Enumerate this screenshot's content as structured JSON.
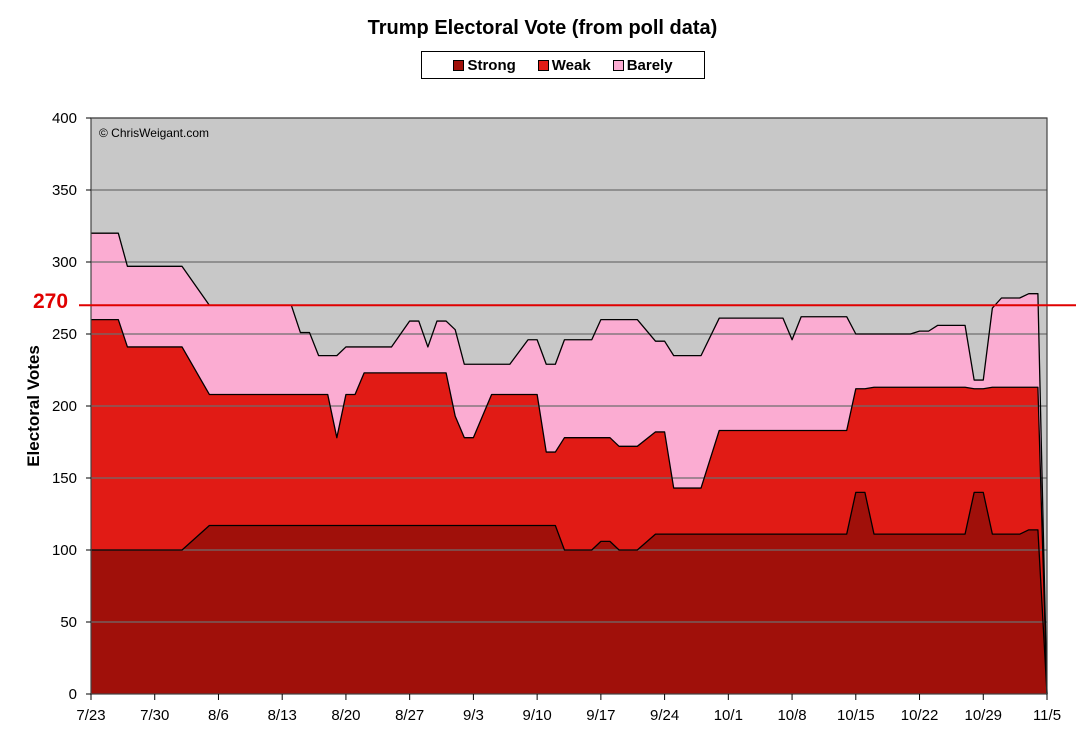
{
  "chart_data": {
    "type": "area",
    "title": "Trump Electoral Vote (from poll data)",
    "ylabel": "Electoral Votes",
    "xlabel": "",
    "ylim": [
      0,
      400
    ],
    "yticks": [
      0,
      50,
      100,
      150,
      200,
      250,
      300,
      350,
      400
    ],
    "xticks": [
      "7/23",
      "7/30",
      "8/6",
      "8/13",
      "8/20",
      "8/27",
      "9/3",
      "9/10",
      "9/17",
      "9/24",
      "10/1",
      "10/8",
      "10/15",
      "10/22",
      "10/29",
      "11/5"
    ],
    "x_day_range": [
      0,
      105
    ],
    "stacked": true,
    "grid": true,
    "legend_position": "top",
    "reference_line": {
      "value": 270,
      "label": "270",
      "color": "#e00000"
    },
    "annotation": "© ChrisWeigant.com",
    "colors": {
      "background": "#c8c8c8",
      "Strong": "#a0100a",
      "Weak": "#e11b15",
      "Barely": "#fbacd2"
    },
    "day_index": [
      0,
      3,
      4,
      7,
      9,
      10,
      13,
      14,
      16,
      17,
      19,
      21,
      22,
      23,
      24,
      25,
      26,
      27,
      28,
      29,
      30,
      31,
      32,
      33,
      35,
      36,
      37,
      38,
      39,
      40,
      41,
      42,
      44,
      45,
      46,
      48,
      49,
      50,
      51,
      52,
      53,
      54,
      55,
      56,
      57,
      58,
      60,
      62,
      63,
      64,
      65,
      66,
      67,
      69,
      70,
      71,
      72,
      73,
      74,
      75,
      76,
      77,
      78,
      79,
      80,
      81,
      83,
      84,
      85,
      86,
      88,
      89,
      90,
      91,
      92,
      93,
      94,
      95,
      96,
      97,
      98,
      99,
      100,
      101,
      102,
      103,
      104,
      105
    ],
    "series": [
      {
        "name": "Strong",
        "values": [
          100,
          100,
          100,
          100,
          100,
          100,
          117,
          117,
          117,
          117,
          117,
          117,
          117,
          117,
          117,
          117,
          117,
          117,
          117,
          117,
          117,
          117,
          117,
          117,
          117,
          117,
          117,
          117,
          117,
          117,
          117,
          117,
          117,
          117,
          117,
          117,
          117,
          117,
          117,
          100,
          100,
          100,
          100,
          106,
          106,
          100,
          100,
          111,
          111,
          111,
          111,
          111,
          111,
          111,
          111,
          111,
          111,
          111,
          111,
          111,
          111,
          111,
          111,
          111,
          111,
          111,
          111,
          140,
          140,
          111,
          111,
          111,
          111,
          111,
          111,
          111,
          111,
          111,
          111,
          140,
          140,
          111,
          111,
          111,
          111,
          114,
          114,
          0
        ]
      },
      {
        "name": "Weak",
        "values": [
          160,
          160,
          141,
          141,
          141,
          141,
          91,
          91,
          91,
          91,
          91,
          91,
          91,
          91,
          91,
          91,
          91,
          61,
          91,
          91,
          106,
          106,
          106,
          106,
          106,
          106,
          106,
          106,
          106,
          76,
          61,
          61,
          91,
          91,
          91,
          91,
          91,
          51,
          51,
          78,
          78,
          78,
          78,
          72,
          72,
          72,
          72,
          71,
          71,
          32,
          32,
          32,
          32,
          72,
          72,
          72,
          72,
          72,
          72,
          72,
          72,
          72,
          72,
          72,
          72,
          72,
          72,
          72,
          72,
          102,
          102,
          102,
          102,
          102,
          102,
          102,
          102,
          102,
          102,
          72,
          72,
          102,
          102,
          102,
          102,
          99,
          99,
          0
        ]
      },
      {
        "name": "Barely",
        "values": [
          60,
          60,
          56,
          56,
          56,
          56,
          62,
          62,
          62,
          62,
          62,
          62,
          62,
          43,
          43,
          27,
          27,
          57,
          33,
          33,
          18,
          18,
          18,
          18,
          36,
          36,
          18,
          36,
          36,
          60,
          51,
          51,
          21,
          21,
          21,
          38,
          38,
          61,
          61,
          68,
          68,
          68,
          68,
          82,
          82,
          88,
          88,
          63,
          63,
          92,
          92,
          92,
          92,
          78,
          78,
          78,
          78,
          78,
          78,
          78,
          78,
          63,
          79,
          79,
          79,
          79,
          79,
          38,
          38,
          37,
          37,
          37,
          37,
          39,
          39,
          43,
          43,
          43,
          43,
          6,
          6,
          55,
          62,
          62,
          62,
          65,
          65,
          0
        ]
      }
    ]
  }
}
